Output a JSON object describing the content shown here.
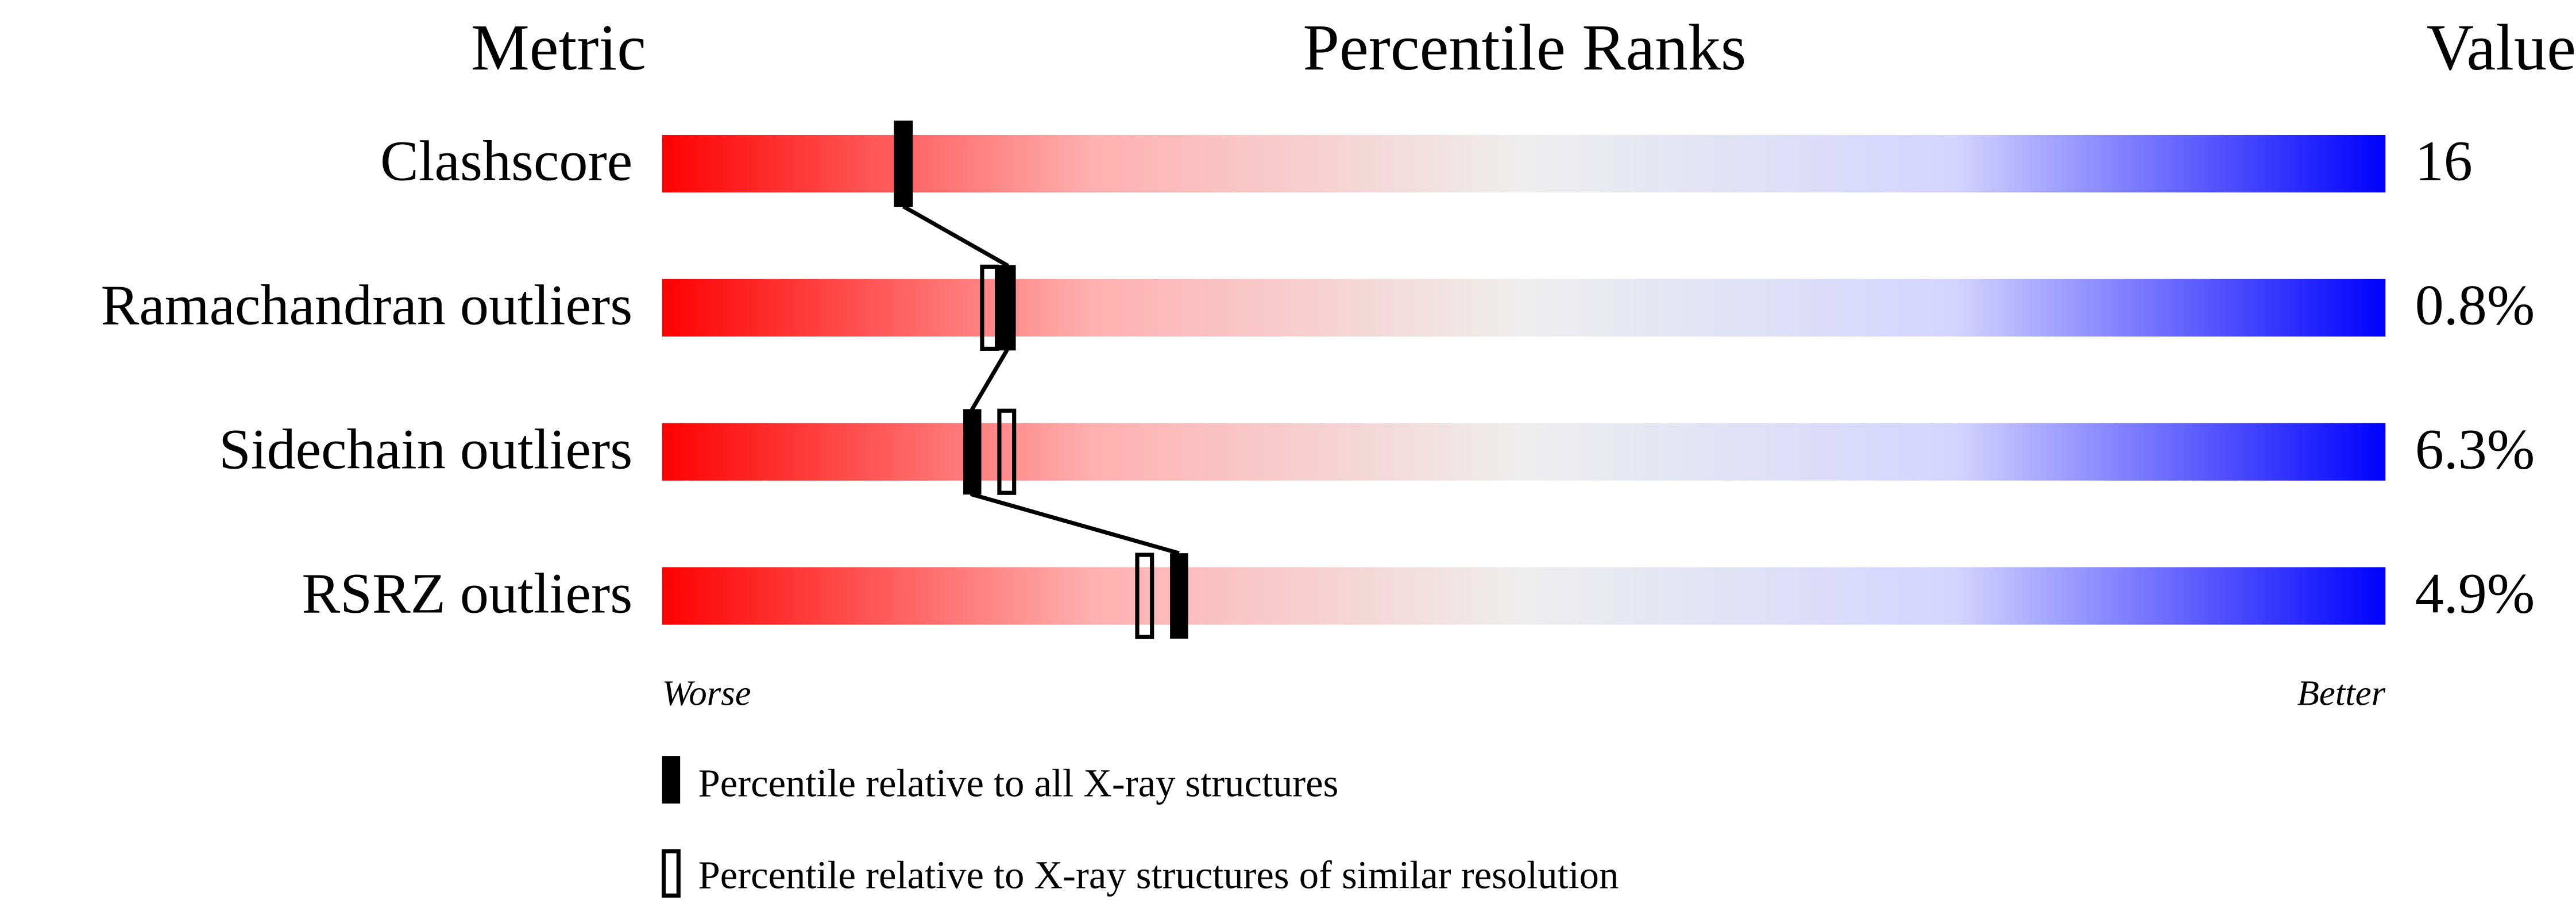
{
  "chart_data": {
    "type": "percentile-slider",
    "column_headers": [
      "Metric",
      "Percentile Ranks",
      "Value"
    ],
    "categories": [
      "Clashscore",
      "Ramachandran outliers",
      "Sidechain outliers",
      "RSRZ outliers"
    ],
    "values": [
      16,
      0.8,
      6.3,
      4.9
    ],
    "value_labels": [
      "16",
      "0.8%",
      "6.3%",
      "4.9%"
    ],
    "xlim": [
      0,
      100
    ],
    "x_end_labels": [
      "Worse",
      "Better"
    ],
    "series": [
      {
        "name": "Percentile relative to all X-ray structures",
        "values": [
          14,
          20,
          18,
          30
        ]
      },
      {
        "name": "Percentile relative to X-ray structures of similar resolution",
        "values": [
          14,
          19,
          20,
          28
        ]
      }
    ]
  }
}
